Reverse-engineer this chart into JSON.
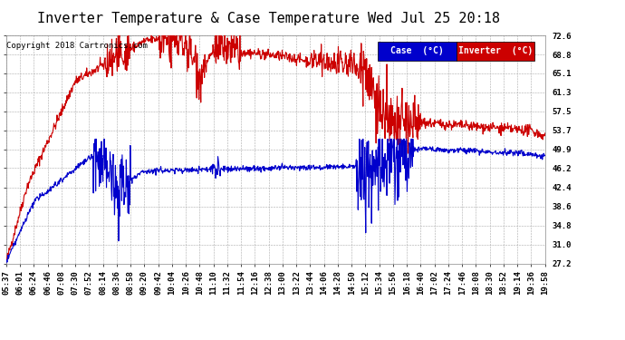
{
  "title": "Inverter Temperature & Case Temperature Wed Jul 25 20:18",
  "copyright": "Copyright 2018 Cartronics.com",
  "legend_case_label": "Case  (°C)",
  "legend_inv_label": "Inverter  (°C)",
  "case_color": "#0000cc",
  "inverter_color": "#cc0000",
  "background_color": "#ffffff",
  "plot_bg_color": "#ffffff",
  "grid_color": "#aaaaaa",
  "yticks": [
    27.2,
    31.0,
    34.8,
    38.6,
    42.4,
    46.2,
    49.9,
    53.7,
    57.5,
    61.3,
    65.1,
    68.8,
    72.6
  ],
  "xtick_labels": [
    "05:37",
    "06:01",
    "06:24",
    "06:46",
    "07:08",
    "07:30",
    "07:52",
    "08:14",
    "08:36",
    "08:58",
    "09:20",
    "09:42",
    "10:04",
    "10:26",
    "10:48",
    "11:10",
    "11:32",
    "11:54",
    "12:16",
    "12:38",
    "13:00",
    "13:22",
    "13:44",
    "14:06",
    "14:28",
    "14:50",
    "15:12",
    "15:34",
    "15:56",
    "16:18",
    "16:40",
    "17:02",
    "17:24",
    "17:46",
    "18:08",
    "18:30",
    "18:52",
    "19:14",
    "19:36",
    "19:58"
  ],
  "ylim": [
    27.2,
    72.6
  ],
  "title_fontsize": 11,
  "axis_fontsize": 6.5,
  "copyright_fontsize": 6.5,
  "legend_fontsize": 7,
  "line_width": 0.8,
  "n_points": 1200
}
